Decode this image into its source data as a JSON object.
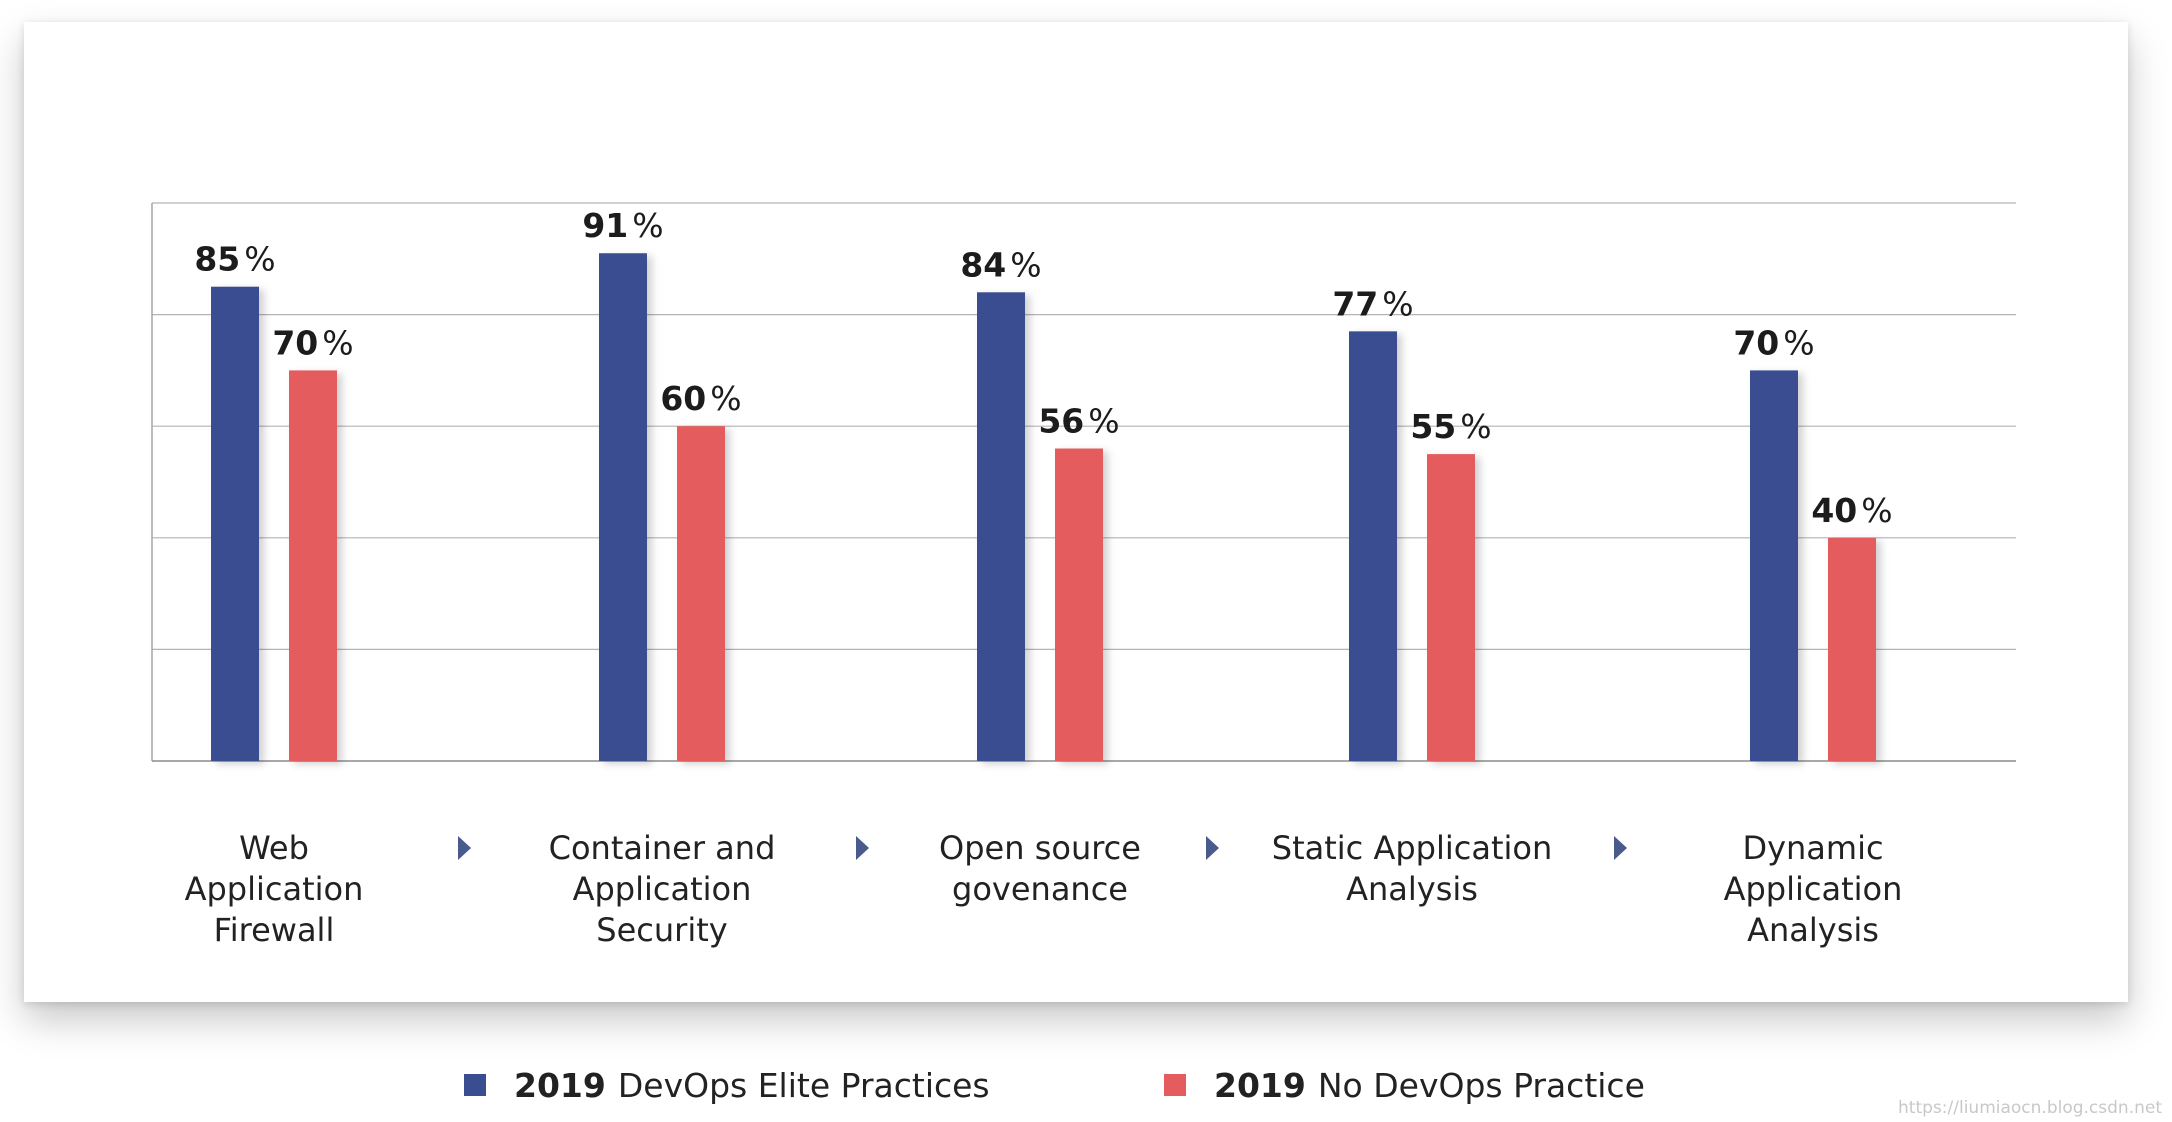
{
  "chart_data": {
    "type": "bar",
    "title": "",
    "xlabel": "",
    "ylabel": "",
    "ylim": [
      0,
      100
    ],
    "grid": true,
    "categories": [
      [
        "Web",
        "Application",
        "Firewall"
      ],
      [
        "Container and",
        "Application",
        "Security"
      ],
      [
        "Open source",
        "govenance"
      ],
      [
        "Static Application",
        "Analysis"
      ],
      [
        "Dynamic",
        "Application",
        "Analysis"
      ]
    ],
    "series": [
      {
        "name": "DevOps Elite Practices",
        "year": "2019",
        "color": "#3a4d91",
        "values": [
          85,
          91,
          84,
          77,
          70
        ]
      },
      {
        "name": "No DevOps Practice",
        "year": "2019",
        "color": "#e55c5e",
        "values": [
          70,
          60,
          56,
          55,
          40
        ]
      }
    ],
    "value_suffix": "%",
    "legend_position": "bottom-center",
    "arrow_color": "#4a5a8c"
  },
  "legend": {
    "items": [
      {
        "year": "2019",
        "label": "DevOps Elite Practices",
        "color": "#3a4d91"
      },
      {
        "year": "2019",
        "label": "No DevOps Practice",
        "color": "#e55c5e"
      }
    ]
  },
  "watermark": "https://liumiaocn.blog.csdn.net"
}
